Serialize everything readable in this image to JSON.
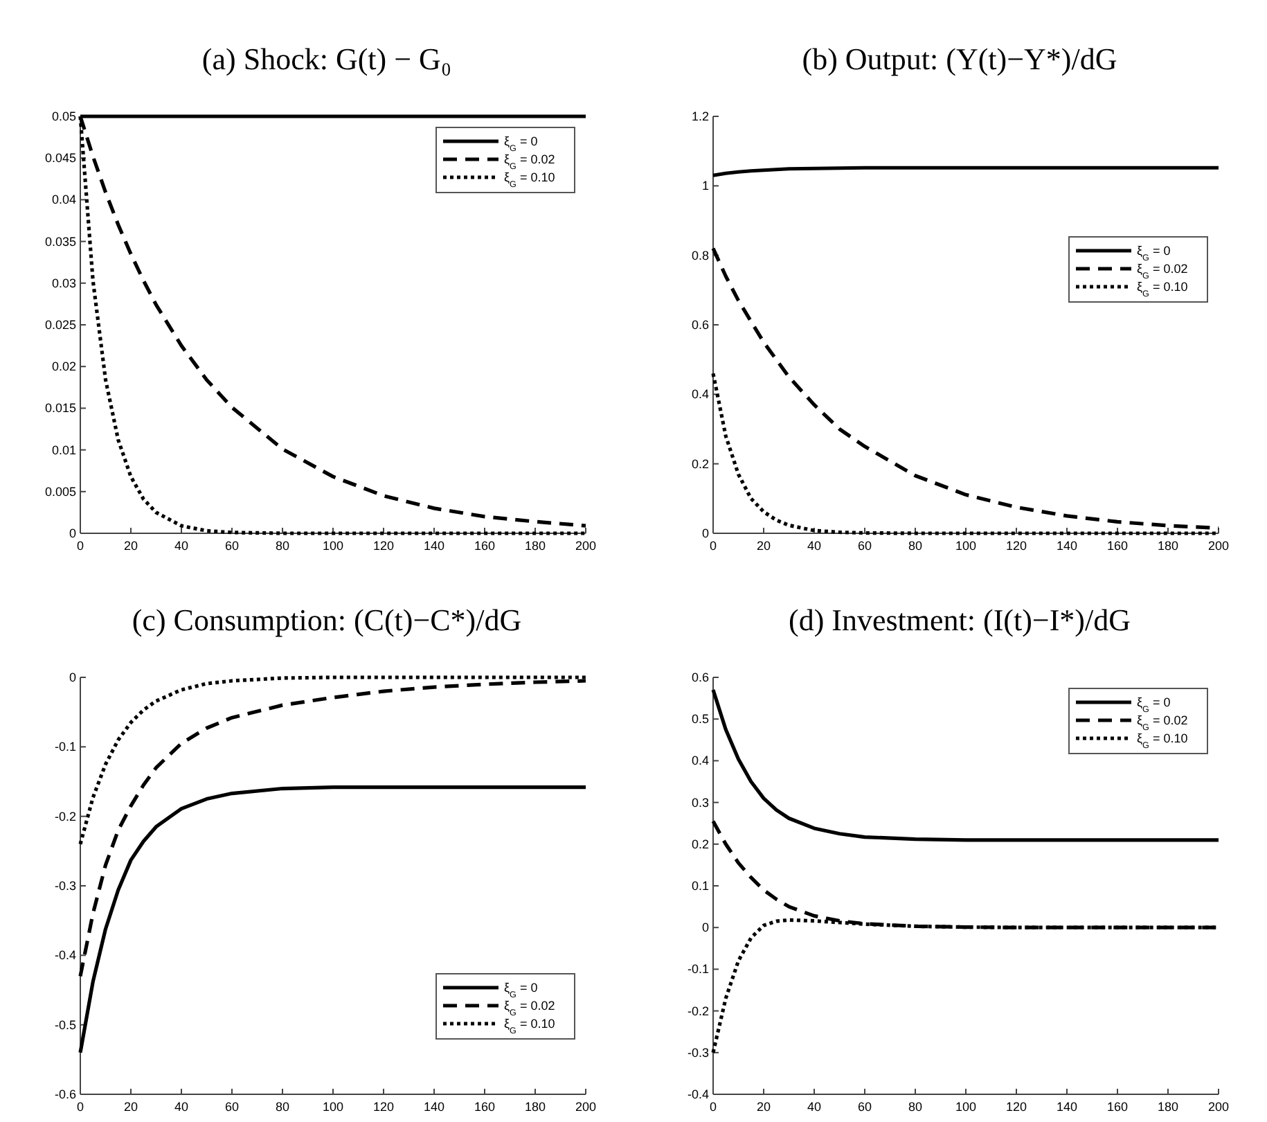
{
  "chart_data": [
    {
      "type": "line",
      "title": "(a) Shock: G(t) − G₀",
      "x": [
        0,
        5,
        10,
        15,
        20,
        25,
        30,
        40,
        50,
        60,
        80,
        100,
        120,
        140,
        160,
        180,
        200
      ],
      "xlim": [
        0,
        200
      ],
      "xticks": [
        0,
        20,
        40,
        60,
        80,
        100,
        120,
        140,
        160,
        180,
        200
      ],
      "ylim": [
        0,
        0.05
      ],
      "yticks": [
        0,
        0.005,
        0.01,
        0.015,
        0.02,
        0.025,
        0.03,
        0.035,
        0.04,
        0.045,
        0.05
      ],
      "legend": "top right",
      "grid": false,
      "series": [
        {
          "name": "ξ$_{G}$ = 0",
          "color": "#000000",
          "line_style": "solid",
          "values": [
            0.05,
            0.05,
            0.05,
            0.05,
            0.05,
            0.05,
            0.05,
            0.05,
            0.05,
            0.05,
            0.05,
            0.05,
            0.05,
            0.05,
            0.05,
            0.05,
            0.05
          ]
        },
        {
          "name": "ξ$_{G}$ = 0.02",
          "color": "#000000",
          "line_style": "dashed",
          "values": [
            0.05,
            0.0452,
            0.0409,
            0.037,
            0.0335,
            0.0303,
            0.0274,
            0.0225,
            0.0184,
            0.0151,
            0.0101,
            0.0068,
            0.0045,
            0.003,
            0.002,
            0.0014,
            0.0009
          ]
        },
        {
          "name": "ξ$_{G}$ = 0.10",
          "color": "#000000",
          "line_style": "dotted",
          "values": [
            0.05,
            0.0303,
            0.0184,
            0.0112,
            0.0068,
            0.0041,
            0.0025,
            0.0009,
            0.0003,
            0.0001,
            0,
            0,
            0,
            0,
            0,
            0,
            0
          ]
        }
      ]
    },
    {
      "type": "line",
      "title": "(b) Output: (Y(t)−Y*)/dG",
      "x": [
        0,
        5,
        10,
        15,
        20,
        25,
        30,
        40,
        50,
        60,
        80,
        100,
        120,
        140,
        160,
        180,
        200
      ],
      "xlim": [
        0,
        200
      ],
      "xticks": [
        0,
        20,
        40,
        60,
        80,
        100,
        120,
        140,
        160,
        180,
        200
      ],
      "ylim": [
        0,
        1.2
      ],
      "yticks": [
        0,
        0.2,
        0.4,
        0.6,
        0.8,
        1,
        1.2
      ],
      "legend": "right",
      "grid": false,
      "series": [
        {
          "name": "ξ$_{G}$ = 0",
          "color": "#000000",
          "line_style": "solid",
          "values": [
            1.03,
            1.036,
            1.04,
            1.043,
            1.045,
            1.047,
            1.049,
            1.05,
            1.051,
            1.052,
            1.052,
            1.052,
            1.052,
            1.052,
            1.052,
            1.052,
            1.052
          ]
        },
        {
          "name": "ξ$_{G}$ = 0.02",
          "color": "#000000",
          "line_style": "dashed",
          "values": [
            0.82,
            0.74,
            0.67,
            0.61,
            0.55,
            0.5,
            0.45,
            0.37,
            0.3,
            0.25,
            0.166,
            0.111,
            0.075,
            0.05,
            0.033,
            0.022,
            0.015
          ]
        },
        {
          "name": "ξ$_{G}$ = 0.10",
          "color": "#000000",
          "line_style": "dotted",
          "values": [
            0.46,
            0.28,
            0.17,
            0.1,
            0.062,
            0.038,
            0.023,
            0.008,
            0.003,
            0.001,
            0,
            0,
            0,
            0,
            0,
            0,
            0
          ]
        }
      ]
    },
    {
      "type": "line",
      "title": "(c) Consumption: (C(t)−C*)/dG",
      "x": [
        0,
        5,
        10,
        15,
        20,
        25,
        30,
        40,
        50,
        60,
        80,
        100,
        120,
        140,
        160,
        180,
        200
      ],
      "xlim": [
        0,
        200
      ],
      "xticks": [
        0,
        20,
        40,
        60,
        80,
        100,
        120,
        140,
        160,
        180,
        200
      ],
      "ylim": [
        -0.6,
        0
      ],
      "yticks": [
        -0.6,
        -0.5,
        -0.4,
        -0.3,
        -0.2,
        -0.1,
        0
      ],
      "legend": "bottom right",
      "grid": false,
      "series": [
        {
          "name": "ξ$_{G}$ = 0",
          "color": "#000000",
          "line_style": "solid",
          "values": [
            -0.54,
            -0.438,
            -0.362,
            -0.306,
            -0.263,
            -0.236,
            -0.215,
            -0.189,
            -0.175,
            -0.167,
            -0.16,
            -0.158,
            -0.158,
            -0.158,
            -0.158,
            -0.158,
            -0.158
          ]
        },
        {
          "name": "ξ$_{G}$ = 0.02",
          "color": "#000000",
          "line_style": "dashed",
          "values": [
            -0.43,
            -0.34,
            -0.27,
            -0.22,
            -0.185,
            -0.155,
            -0.13,
            -0.095,
            -0.073,
            -0.058,
            -0.04,
            -0.029,
            -0.02,
            -0.014,
            -0.01,
            -0.007,
            -0.005
          ]
        },
        {
          "name": "ξ$_{G}$ = 0.10",
          "color": "#000000",
          "line_style": "dotted",
          "values": [
            -0.24,
            -0.173,
            -0.125,
            -0.09,
            -0.065,
            -0.047,
            -0.034,
            -0.018,
            -0.009,
            -0.005,
            -0.001,
            0,
            0,
            0,
            0,
            0,
            0
          ]
        }
      ]
    },
    {
      "type": "line",
      "title": "(d) Investment: (I(t)−I*)/dG",
      "x": [
        0,
        5,
        10,
        15,
        20,
        25,
        30,
        40,
        50,
        60,
        80,
        100,
        120,
        140,
        160,
        180,
        200
      ],
      "xlim": [
        0,
        200
      ],
      "xticks": [
        0,
        20,
        40,
        60,
        80,
        100,
        120,
        140,
        160,
        180,
        200
      ],
      "ylim": [
        -0.4,
        0.6
      ],
      "yticks": [
        -0.4,
        -0.3,
        -0.2,
        -0.1,
        0,
        0.1,
        0.2,
        0.3,
        0.4,
        0.5,
        0.6
      ],
      "legend": "top right",
      "grid": false,
      "series": [
        {
          "name": "ξ$_{G}$ = 0",
          "color": "#000000",
          "line_style": "solid",
          "values": [
            0.57,
            0.475,
            0.404,
            0.35,
            0.31,
            0.282,
            0.262,
            0.238,
            0.225,
            0.217,
            0.212,
            0.21,
            0.21,
            0.21,
            0.21,
            0.21,
            0.21
          ]
        },
        {
          "name": "ξ$_{G}$ = 0.02",
          "color": "#000000",
          "line_style": "dashed",
          "values": [
            0.255,
            0.2,
            0.155,
            0.12,
            0.09,
            0.068,
            0.05,
            0.028,
            0.016,
            0.009,
            0.003,
            0.001,
            0,
            0,
            0,
            0,
            0
          ]
        },
        {
          "name": "ξ$_{G}$ = 0.10",
          "color": "#000000",
          "line_style": "dotted",
          "values": [
            -0.3,
            -0.17,
            -0.08,
            -0.025,
            0.005,
            0.015,
            0.018,
            0.016,
            0.012,
            0.008,
            0.003,
            0.001,
            0,
            0,
            0,
            0,
            0
          ]
        }
      ]
    }
  ]
}
